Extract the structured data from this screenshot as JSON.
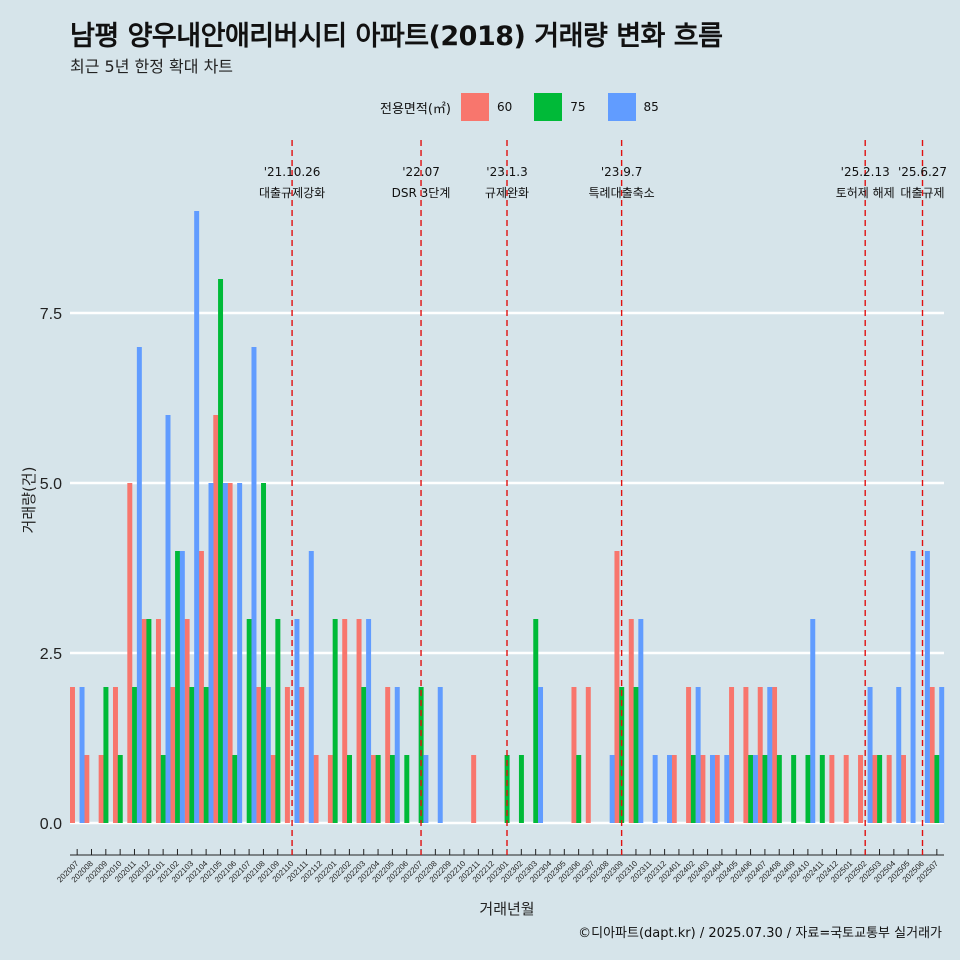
{
  "title": "남평 양우내안애리버시티 아파트(2018) 거래량 변화 흐름",
  "subtitle": "최근 5년 한정 확대 차트",
  "legend": {
    "title": "전용면적(㎡)",
    "items": [
      {
        "label": "60",
        "color": "#F8766D"
      },
      {
        "label": "75",
        "color": "#00BA38"
      },
      {
        "label": "85",
        "color": "#619CFF"
      }
    ]
  },
  "footer": "©디아파트(dapt.kr) / 2025.07.30 / 자료=국토교통부 실거래가",
  "chart_data": {
    "type": "bar",
    "xlabel": "거래년월",
    "ylabel": "거래량(건)",
    "ylim": [
      0,
      9.5
    ],
    "yticks": [
      "0.0",
      "2.5",
      "5.0",
      "7.5"
    ],
    "categories": [
      "202007",
      "202008",
      "202009",
      "202010",
      "202011",
      "202012",
      "202101",
      "202102",
      "202103",
      "202104",
      "202105",
      "202106",
      "202107",
      "202108",
      "202109",
      "202110",
      "202111",
      "202112",
      "202201",
      "202202",
      "202203",
      "202204",
      "202205",
      "202206",
      "202207",
      "202208",
      "202209",
      "202210",
      "202211",
      "202212",
      "202301",
      "202302",
      "202303",
      "202304",
      "202305",
      "202306",
      "202307",
      "202308",
      "202309",
      "202310",
      "202311",
      "202312",
      "202401",
      "202402",
      "202403",
      "202404",
      "202405",
      "202406",
      "202407",
      "202408",
      "202409",
      "202410",
      "202411",
      "202412",
      "202501",
      "202502",
      "202503",
      "202504",
      "202505",
      "202506",
      "202507"
    ],
    "series": [
      {
        "name": "60",
        "color": "#F8766D",
        "values": [
          2,
          1,
          1,
          2,
          5,
          3,
          3,
          2,
          3,
          4,
          6,
          5,
          0,
          2,
          1,
          2,
          2,
          1,
          1,
          3,
          3,
          1,
          2,
          0,
          0,
          0,
          0,
          0,
          1,
          0,
          0,
          0,
          0,
          0,
          0,
          2,
          2,
          0,
          4,
          3,
          0,
          0,
          1,
          2,
          1,
          1,
          2,
          2,
          2,
          2,
          0,
          0,
          0,
          1,
          1,
          1,
          1,
          1,
          1,
          0,
          2
        ]
      },
      {
        "name": "75",
        "color": "#00BA38",
        "values": [
          0,
          0,
          2,
          1,
          2,
          3,
          1,
          4,
          2,
          2,
          8,
          1,
          3,
          5,
          3,
          0,
          0,
          0,
          3,
          1,
          2,
          1,
          1,
          1,
          2,
          0,
          0,
          0,
          0,
          0,
          1,
          1,
          3,
          0,
          0,
          1,
          0,
          0,
          2,
          2,
          0,
          0,
          0,
          1,
          0,
          0,
          0,
          1,
          1,
          1,
          1,
          1,
          1,
          0,
          0,
          0,
          1,
          0,
          0,
          0,
          1
        ]
      },
      {
        "name": "85",
        "color": "#619CFF",
        "values": [
          2,
          0,
          0,
          0,
          7,
          0,
          6,
          4,
          9,
          5,
          5,
          5,
          7,
          2,
          0,
          3,
          4,
          0,
          0,
          0,
          3,
          0,
          2,
          0,
          1,
          2,
          0,
          0,
          0,
          0,
          0,
          0,
          2,
          0,
          0,
          0,
          0,
          1,
          0,
          3,
          1,
          1,
          0,
          2,
          1,
          1,
          0,
          1,
          2,
          0,
          0,
          3,
          0,
          0,
          0,
          2,
          0,
          2,
          4,
          4,
          2
        ]
      }
    ],
    "events": [
      {
        "x": "202110",
        "date": "'21.10.26",
        "label": "대출규제강화"
      },
      {
        "x": "202207",
        "date": "'22.07",
        "label": "DSR 3단계"
      },
      {
        "x": "202301",
        "date": "'23.1.3",
        "label": "규제완화"
      },
      {
        "x": "202309",
        "date": "'23.9.7",
        "label": "특례대출축소"
      },
      {
        "x": "202502",
        "date": "'25.2.13",
        "label": "토허제 해제"
      },
      {
        "x": "202506",
        "date": "'25.6.27",
        "label": "대출규제"
      }
    ],
    "grid": "horizontal",
    "legend_position": "top"
  }
}
